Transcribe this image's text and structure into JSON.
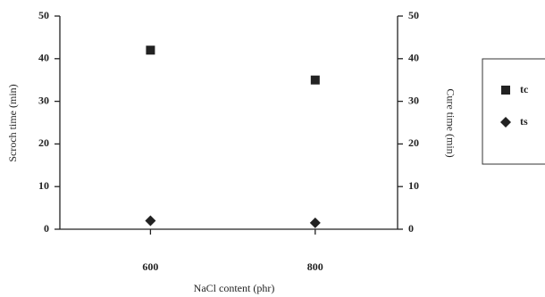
{
  "chart_data": {
    "type": "scatter",
    "x_label": "NaCl content (phr)",
    "y_label": "Scroch time (min)",
    "y2_label": "Cure time (min)",
    "x": [
      600,
      800
    ],
    "series": [
      {
        "name": "tc",
        "color": "#222222",
        "marker": "square",
        "axis": "y2",
        "values": [
          42,
          35
        ]
      },
      {
        "name": "ts",
        "color": "#222222",
        "marker": "diamond",
        "values": [
          2,
          1.5
        ]
      }
    ],
    "xlim": [
      490,
      900
    ],
    "xticks": [
      600,
      800
    ],
    "ylim": [
      0,
      50
    ],
    "yticks": [
      0,
      10,
      20,
      30,
      40,
      50
    ],
    "y2lim": [
      0,
      50
    ],
    "y2ticks": [
      0,
      10,
      20,
      30,
      40,
      50
    ],
    "legend": "right"
  }
}
